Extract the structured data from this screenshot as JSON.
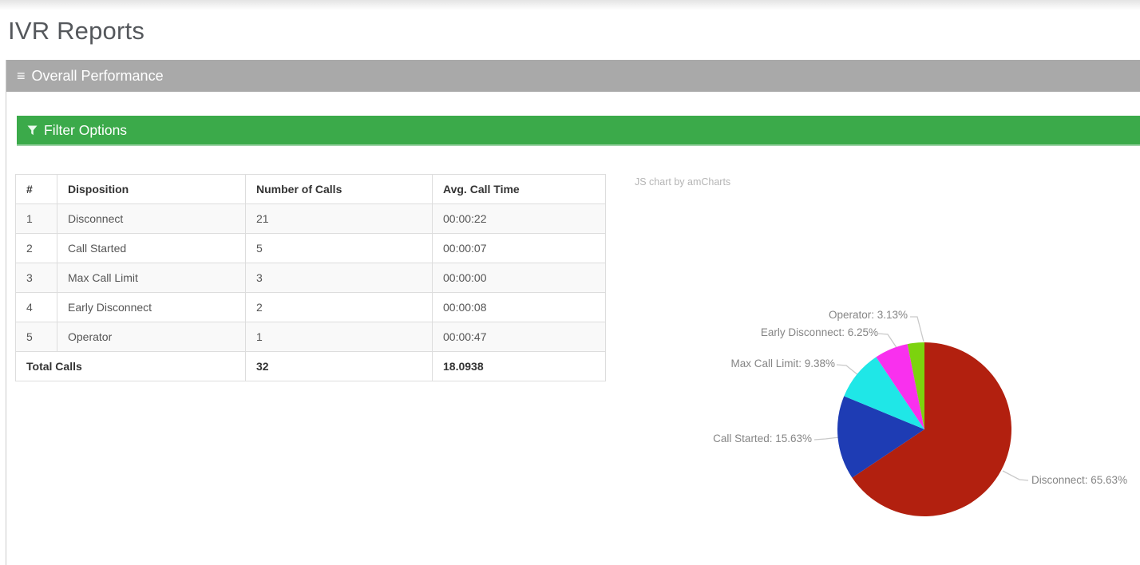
{
  "page": {
    "title": "IVR Reports"
  },
  "header": {
    "title": "Overall Performance"
  },
  "filter_bar": {
    "label": "Filter Options"
  },
  "icons": {
    "hamburger": "≡"
  },
  "colors": {
    "header_bar_gray": "#A9A9A9",
    "filter_bar_green": "#3BAA4A",
    "filter_bar_border_green": "#9ED3A6",
    "panel_border": "#CCCCCC",
    "table_border": "#DDDDDD",
    "table_stripe": "#F9F9F9",
    "chart_label_gray": "#858585"
  },
  "table": {
    "headers": [
      "#",
      "Disposition",
      "Number of Calls",
      "Avg. Call Time"
    ],
    "rows": [
      {
        "num": "1",
        "disposition": "Disconnect",
        "calls": "21",
        "avg_call_time": "00:00:22"
      },
      {
        "num": "2",
        "disposition": "Call Started",
        "calls": "5",
        "avg_call_time": "00:00:07"
      },
      {
        "num": "3",
        "disposition": "Max Call Limit",
        "calls": "3",
        "avg_call_time": "00:00:00"
      },
      {
        "num": "4",
        "disposition": "Early Disconnect",
        "calls": "2",
        "avg_call_time": "00:00:08"
      },
      {
        "num": "5",
        "disposition": "Operator",
        "calls": "1",
        "avg_call_time": "00:00:47"
      }
    ],
    "total_row": {
      "label": "Total Calls",
      "calls": "32",
      "avg_call_time": "18.0938"
    }
  },
  "chart": {
    "credit": "JS chart by amCharts"
  },
  "chart_data": {
    "type": "pie",
    "direction": "clockwise",
    "start_angle": "12-o-clock",
    "legend": "none",
    "labels": "outside-with-ticks",
    "slices": [
      {
        "label": "Disconnect",
        "value": 21,
        "pct": 65.63,
        "display": "Disconnect: 65.63%",
        "color": "#B2200F"
      },
      {
        "label": "Call Started",
        "value": 5,
        "pct": 15.63,
        "display": "Call Started: 15.63%",
        "color": "#1E3CB4"
      },
      {
        "label": "Max Call Limit",
        "value": 3,
        "pct": 9.38,
        "display": "Max Call Limit: 9.38%",
        "color": "#1FE7E7"
      },
      {
        "label": "Early Disconnect",
        "value": 2,
        "pct": 6.25,
        "display": "Early Disconnect: 6.25%",
        "color": "#F930EE"
      },
      {
        "label": "Operator",
        "value": 1,
        "pct": 3.13,
        "display": "Operator: 3.13%",
        "color": "#7CD30E"
      }
    ]
  }
}
